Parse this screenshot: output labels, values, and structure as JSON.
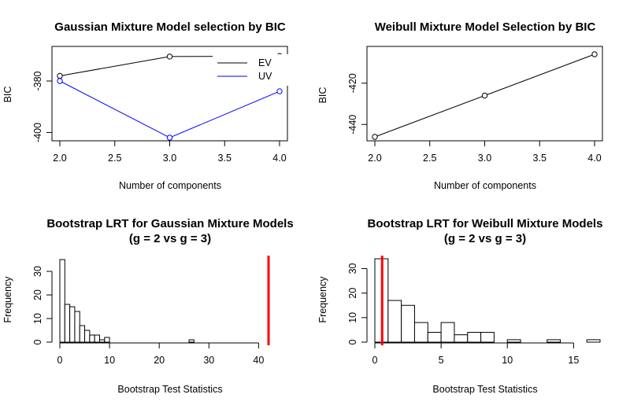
{
  "chart_data": [
    {
      "type": "line",
      "title": "Gaussian Mixture Model selection by BIC",
      "xlabel": "Number of components",
      "ylabel": "BIC",
      "x": [
        2,
        3,
        4
      ],
      "xlim": [
        2,
        4
      ],
      "ylim": [
        -402,
        -369
      ],
      "xticks": [
        2.0,
        2.5,
        3.0,
        3.5,
        4.0
      ],
      "xtick_labels": [
        "2.0",
        "2.5",
        "3.0",
        "3.5",
        "4.0"
      ],
      "yticks": [
        -400,
        -380
      ],
      "ytick_labels": [
        "-400",
        "-380"
      ],
      "legend": "top-right",
      "series": [
        {
          "name": "EV",
          "color": "#000000",
          "values": [
            -378,
            -370.5,
            -370.3
          ]
        },
        {
          "name": "UV",
          "color": "#0000ff",
          "values": [
            -380,
            -402,
            -384
          ]
        }
      ]
    },
    {
      "type": "line",
      "title": "Weibull Mixture Model Selection by BIC",
      "xlabel": "Number of components",
      "ylabel": "BIC",
      "x": [
        2,
        3,
        4
      ],
      "xlim": [
        2,
        4
      ],
      "ylim": [
        -446,
        -406
      ],
      "xticks": [
        2.0,
        2.5,
        3.0,
        3.5,
        4.0
      ],
      "xtick_labels": [
        "2.0",
        "2.5",
        "3.0",
        "3.5",
        "4.0"
      ],
      "yticks": [
        -440,
        -420
      ],
      "ytick_labels": [
        "-440",
        "-420"
      ],
      "series": [
        {
          "color": "#000000",
          "values": [
            -446,
            -426,
            -406
          ]
        }
      ]
    },
    {
      "type": "bar",
      "subtype": "histogram",
      "title": "Bootstrap LRT for Gaussian Mixture Models",
      "subtitle": "(g = 2 vs g = 3)",
      "xlabel": "Bootstrap Test Statistics",
      "ylabel": "Frequency",
      "xlim": [
        0,
        42
      ],
      "ylim": [
        0,
        35
      ],
      "xticks": [
        0,
        10,
        20,
        30,
        40
      ],
      "xtick_labels": [
        "0",
        "10",
        "20",
        "30",
        "40"
      ],
      "yticks": [
        0,
        10,
        20,
        30
      ],
      "ytick_labels": [
        "0",
        "10",
        "20",
        "30"
      ],
      "bin_width": 1,
      "bins_start": [
        0,
        1,
        2,
        3,
        4,
        5,
        6,
        7,
        8,
        9,
        10,
        11,
        12,
        13,
        14,
        15,
        16,
        17,
        18,
        19,
        20,
        21,
        22,
        23,
        24,
        25,
        26
      ],
      "counts": [
        35,
        16,
        15,
        13,
        7,
        5,
        3,
        3,
        1,
        2,
        0,
        0,
        0,
        0,
        0,
        0,
        0,
        0,
        0,
        0,
        0,
        0,
        0,
        0,
        0,
        0,
        1
      ],
      "observed_statistic": 42,
      "observed_color": "#ff0000"
    },
    {
      "type": "bar",
      "subtype": "histogram",
      "title": "Bootstrap LRT for Weibull Mixture Models",
      "subtitle": "(g = 2 vs g = 3)",
      "xlabel": "Bootstrap Test Statistics",
      "ylabel": "Frequency",
      "xlim": [
        0,
        17
      ],
      "ylim": [
        0,
        34
      ],
      "xticks": [
        0,
        5,
        10,
        15
      ],
      "xtick_labels": [
        "0",
        "5",
        "10",
        "15"
      ],
      "yticks": [
        0,
        10,
        20,
        30
      ],
      "ytick_labels": [
        "0",
        "10",
        "20",
        "30"
      ],
      "bin_width": 1,
      "bins_start": [
        0,
        1,
        2,
        3,
        4,
        5,
        6,
        7,
        8,
        9,
        10,
        11,
        12,
        13,
        14,
        15,
        16
      ],
      "counts": [
        34,
        17,
        15,
        8,
        4,
        8,
        3,
        4,
        4,
        0,
        1,
        0,
        0,
        1,
        0,
        0,
        1
      ],
      "observed_statistic": 0.55,
      "observed_color": "#ff0000"
    }
  ]
}
